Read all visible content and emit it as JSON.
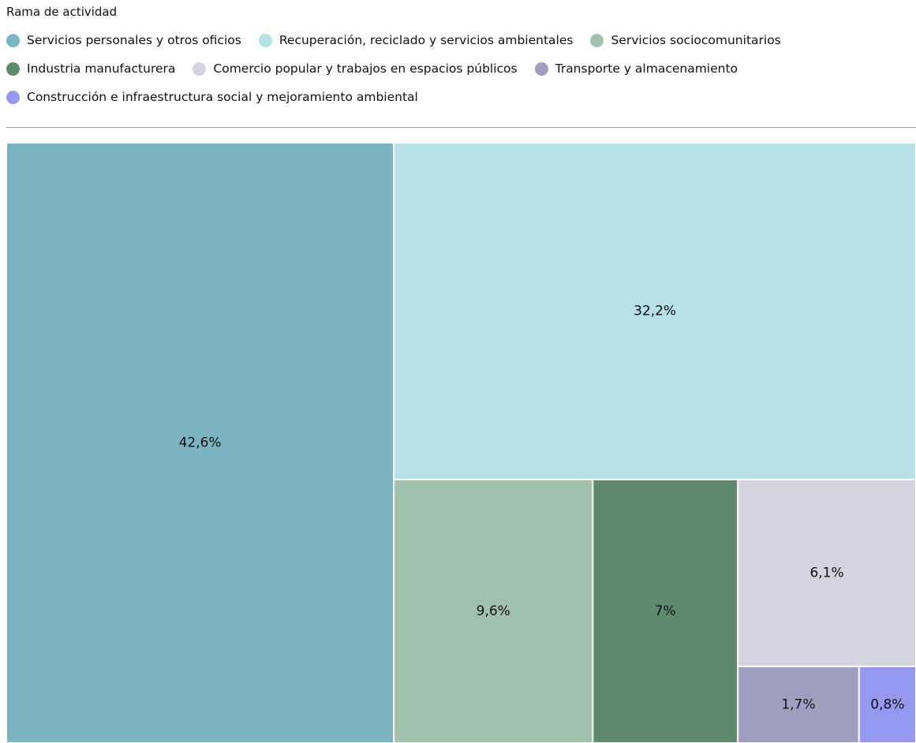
{
  "chart_data": {
    "type": "treemap",
    "title": "Rama de actividad",
    "categories": [
      "Servicios personales y otros oficios",
      "Recuperación, reciclado y servicios ambientales",
      "Servicios sociocomunitarios",
      "Industria manufacturera",
      "Comercio popular y trabajos en espacios públicos",
      "Transporte y almacenamiento",
      "Construcción e infraestructura social y mejoramiento ambiental"
    ],
    "values": [
      42.6,
      32.2,
      9.6,
      7,
      6.1,
      1.7,
      0.8
    ],
    "value_labels": [
      "42,6%",
      "32,2%",
      "9,6%",
      "7%",
      "6,1%",
      "1,7%",
      "0,8%"
    ],
    "colors": [
      "#7db4c2",
      "#b7e0e7",
      "#a2c1ad",
      "#5e8a6d",
      "#d4d3e0",
      "#a09ebf",
      "#9498ee"
    ]
  }
}
